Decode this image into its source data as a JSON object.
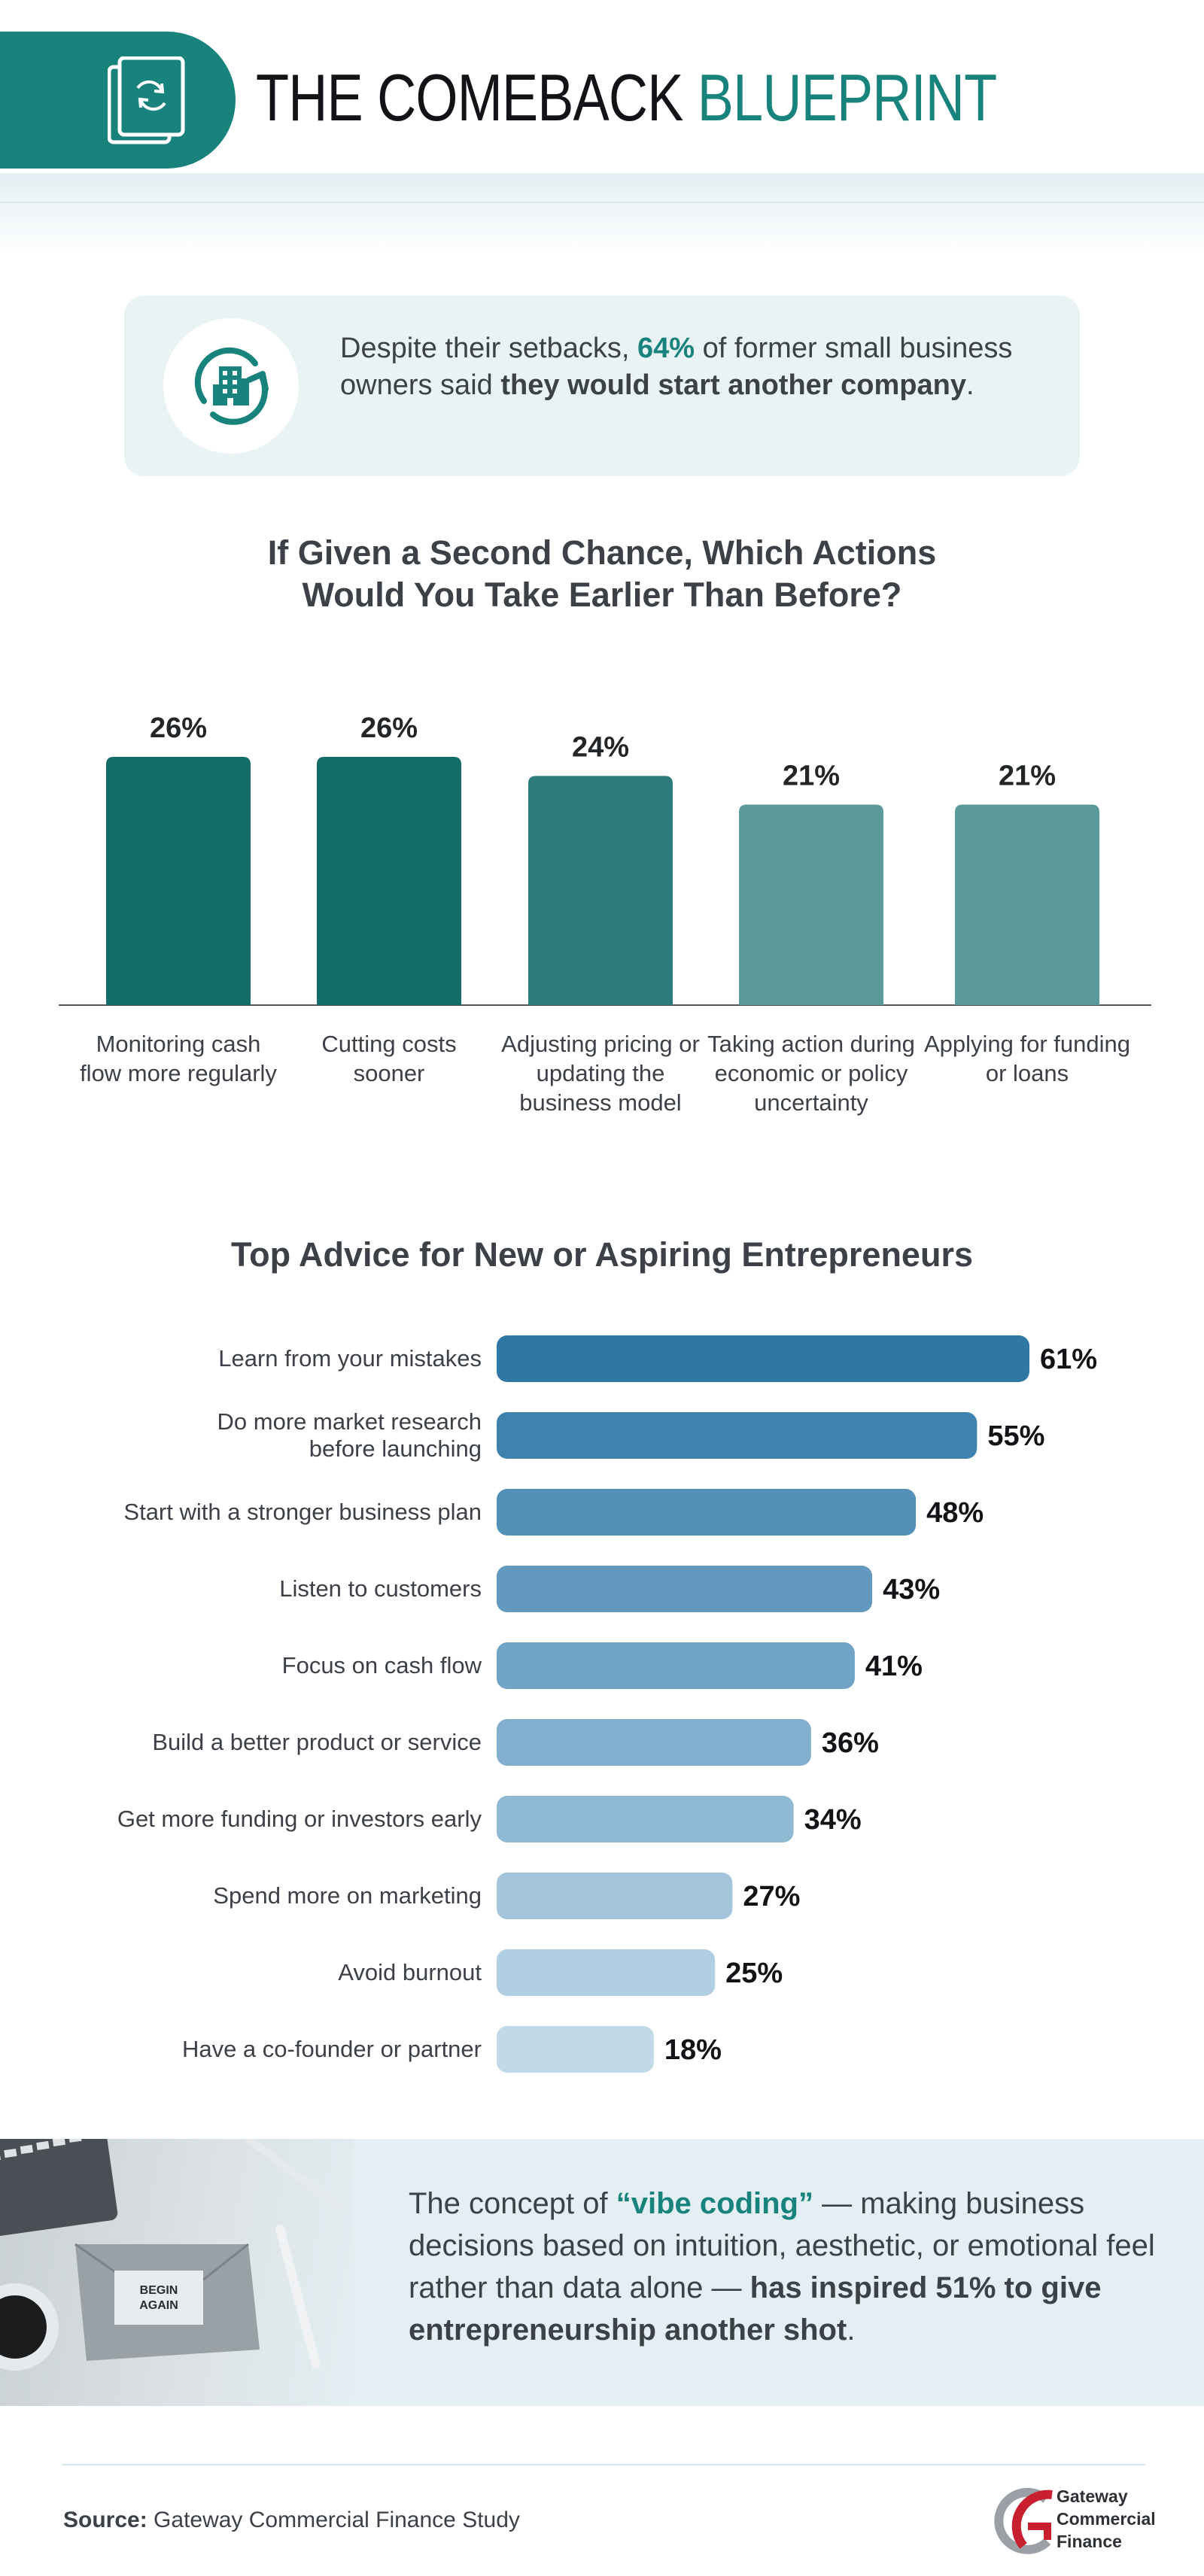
{
  "header": {
    "title_part1": "THE COMEBACK",
    "title_part2": "BLUEPRINT",
    "icon": "document-refresh-icon"
  },
  "stat_card": {
    "icon": "building-cycle-icon",
    "text_before": "Despite their setbacks, ",
    "highlight": "64%",
    "text_middle": " of former small business owners said ",
    "bold_phrase": "they would start another company",
    "text_end": "."
  },
  "chart_data": [
    {
      "type": "bar",
      "title": "If Given a Second Chance, Which Actions Would You Take Earlier Than Before?",
      "categories": [
        "Monitoring cash flow more regularly",
        "Cutting costs sooner",
        "Adjusting pricing or updating the business model",
        "Taking action during economic or policy uncertainty",
        "Applying for funding or loans"
      ],
      "values": [
        26,
        26,
        24,
        21,
        21
      ],
      "value_labels": [
        "26%",
        "26%",
        "24%",
        "21%",
        "21%"
      ],
      "colors": [
        "#146c68",
        "#146c68",
        "#2b7c7b",
        "#5a9a9a",
        "#5a9a9a"
      ],
      "ylim": [
        0,
        26
      ],
      "grid": false
    },
    {
      "type": "bar",
      "orientation": "horizontal",
      "title": "Top Advice for New or Aspiring Entrepreneurs",
      "categories": [
        "Learn from your mistakes",
        "Do more market research before launching",
        "Start with a stronger business plan",
        "Listen to customers",
        "Focus on cash flow",
        "Build a better product or service",
        "Get more funding or investors early",
        "Spend more on marketing",
        "Avoid burnout",
        "Have a co-founder or partner"
      ],
      "values": [
        61,
        55,
        48,
        43,
        41,
        36,
        34,
        27,
        25,
        18
      ],
      "value_labels": [
        "61%",
        "55%",
        "48%",
        "43%",
        "41%",
        "36%",
        "34%",
        "27%",
        "25%",
        "18%"
      ],
      "colors": [
        "#2f78a6",
        "#3d83ae",
        "#5390b8",
        "#6399be",
        "#70a3c6",
        "#82afcd",
        "#8fb8d3",
        "#a3c5dc",
        "#b1cfe2",
        "#c2d9e8"
      ],
      "xlim": [
        0,
        61
      ],
      "grid": false
    }
  ],
  "banner": {
    "image_note": "BEGIN AGAIN",
    "text_before": "The concept of ",
    "quoted": "“vibe coding”",
    "text_middle": " — making business decisions based on intuition, aesthetic, or emotional feel rather than data alone — ",
    "bold_phrase": "has inspired 51% to give entrepreneurship another shot",
    "text_end": "."
  },
  "footer": {
    "source_label": "Source:",
    "source_text": "Gateway Commercial Finance Study",
    "logo_lines": [
      "Gateway",
      "Commercial",
      "Finance"
    ],
    "logo_icon": "gateway-g-logo-icon"
  },
  "colors": {
    "brand_teal": "#18837c",
    "dark_text": "#3c4147",
    "card_bg": "#e9f3f4",
    "banner_bg": "#e3eff3",
    "logo_red": "#c8202f"
  }
}
